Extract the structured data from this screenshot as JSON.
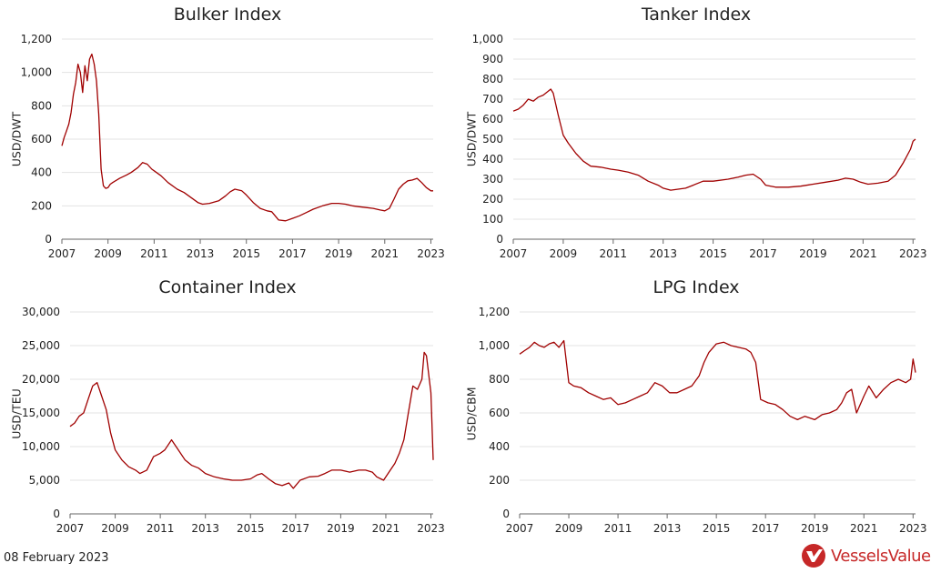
{
  "footer": {
    "date": "08 February 2023"
  },
  "brand": {
    "name": "VesselsValue",
    "color": "#c62828"
  },
  "colors": {
    "line": "#a00000",
    "grid": "#e3e3e3",
    "axis": "#666666",
    "text": "#222222"
  },
  "chart_data": [
    {
      "type": "line",
      "title": "Bulker Index",
      "ylabel": "USD/DWT",
      "xlabel": "",
      "xlim": [
        2007,
        2023.1
      ],
      "ylim": [
        0,
        1200
      ],
      "yticks": [
        0,
        200,
        400,
        600,
        800,
        1000,
        1200
      ],
      "ytick_labels": [
        "0",
        "200",
        "400",
        "600",
        "800",
        "1,000",
        "1,200"
      ],
      "xticks": [
        2007,
        2009,
        2011,
        2013,
        2015,
        2017,
        2019,
        2021,
        2023
      ],
      "xtick_labels": [
        "2007",
        "2009",
        "2011",
        "2013",
        "2015",
        "2017",
        "2019",
        "2021",
        "2023"
      ],
      "grid": true,
      "series": [
        {
          "x": [
            2007.0,
            2007.1,
            2007.2,
            2007.3,
            2007.4,
            2007.5,
            2007.6,
            2007.7,
            2007.8,
            2007.9,
            2008.0,
            2008.1,
            2008.2,
            2008.3,
            2008.4,
            2008.5,
            2008.6,
            2008.7,
            2008.8,
            2008.9,
            2009.0,
            2009.1,
            2009.2,
            2009.5,
            2009.8,
            2010.0,
            2010.3,
            2010.5,
            2010.7,
            2010.9,
            2011.0,
            2011.3,
            2011.6,
            2012.0,
            2012.3,
            2012.6,
            2012.9,
            2013.1,
            2013.4,
            2013.8,
            2014.1,
            2014.3,
            2014.5,
            2014.8,
            2015.0,
            2015.3,
            2015.6,
            2015.9,
            2016.1,
            2016.4,
            2016.7,
            2017.0,
            2017.3,
            2017.6,
            2017.9,
            2018.3,
            2018.7,
            2019.0,
            2019.3,
            2019.6,
            2019.9,
            2020.2,
            2020.5,
            2020.8,
            2021.0,
            2021.2,
            2021.4,
            2021.6,
            2021.8,
            2022.0,
            2022.2,
            2022.4,
            2022.6,
            2022.8,
            2023.0,
            2023.1
          ],
          "y": [
            560,
            610,
            650,
            690,
            760,
            870,
            940,
            1050,
            1000,
            880,
            1040,
            950,
            1080,
            1110,
            1050,
            950,
            750,
            420,
            320,
            305,
            310,
            330,
            340,
            365,
            385,
            400,
            430,
            460,
            450,
            420,
            410,
            380,
            340,
            300,
            280,
            250,
            220,
            210,
            215,
            230,
            260,
            285,
            300,
            290,
            265,
            220,
            185,
            170,
            165,
            115,
            110,
            125,
            140,
            160,
            180,
            200,
            215,
            215,
            210,
            200,
            195,
            190,
            185,
            175,
            170,
            185,
            240,
            300,
            330,
            350,
            355,
            365,
            340,
            310,
            290,
            290
          ]
        }
      ]
    },
    {
      "type": "line",
      "title": "Tanker Index",
      "ylabel": "USD/DWT",
      "xlabel": "",
      "xlim": [
        2007,
        2023.1
      ],
      "ylim": [
        0,
        1000
      ],
      "yticks": [
        0,
        100,
        200,
        300,
        400,
        500,
        600,
        700,
        800,
        900,
        1000
      ],
      "ytick_labels": [
        "0",
        "100",
        "200",
        "300",
        "400",
        "500",
        "600",
        "700",
        "800",
        "900",
        "1,000"
      ],
      "xticks": [
        2007,
        2009,
        2011,
        2013,
        2015,
        2017,
        2019,
        2021,
        2023
      ],
      "xtick_labels": [
        "2007",
        "2009",
        "2011",
        "2013",
        "2015",
        "2017",
        "2019",
        "2021",
        "2023"
      ],
      "grid": true,
      "series": [
        {
          "x": [
            2007.0,
            2007.2,
            2007.4,
            2007.6,
            2007.8,
            2008.0,
            2008.2,
            2008.4,
            2008.5,
            2008.6,
            2008.8,
            2009.0,
            2009.2,
            2009.5,
            2009.8,
            2010.1,
            2010.5,
            2010.9,
            2011.2,
            2011.6,
            2012.0,
            2012.4,
            2012.8,
            2013.0,
            2013.3,
            2013.6,
            2013.9,
            2014.2,
            2014.6,
            2015.0,
            2015.3,
            2015.6,
            2016.0,
            2016.3,
            2016.6,
            2016.9,
            2017.1,
            2017.5,
            2018.0,
            2018.5,
            2019.0,
            2019.5,
            2020.0,
            2020.3,
            2020.6,
            2020.9,
            2021.2,
            2021.6,
            2022.0,
            2022.3,
            2022.6,
            2022.9,
            2023.0,
            2023.1
          ],
          "y": [
            640,
            650,
            670,
            700,
            690,
            710,
            720,
            740,
            750,
            730,
            620,
            520,
            480,
            430,
            390,
            365,
            360,
            350,
            345,
            335,
            320,
            290,
            270,
            255,
            245,
            250,
            255,
            270,
            290,
            290,
            295,
            300,
            310,
            320,
            325,
            300,
            270,
            260,
            260,
            265,
            275,
            285,
            295,
            305,
            300,
            285,
            275,
            280,
            290,
            320,
            380,
            450,
            490,
            500
          ]
        }
      ]
    },
    {
      "type": "line",
      "title": "Container Index",
      "ylabel": "USD/TEU",
      "xlabel": "",
      "xlim": [
        2007,
        2023.1
      ],
      "ylim": [
        0,
        30000
      ],
      "yticks": [
        0,
        5000,
        10000,
        15000,
        20000,
        25000,
        30000
      ],
      "ytick_labels": [
        "0",
        "5,000",
        "10,000",
        "15,000",
        "20,000",
        "25,000",
        "30,000"
      ],
      "xticks": [
        2007,
        2009,
        2011,
        2013,
        2015,
        2017,
        2019,
        2021,
        2023
      ],
      "xtick_labels": [
        "2007",
        "2009",
        "2011",
        "2013",
        "2015",
        "2017",
        "2019",
        "2021",
        "2023"
      ],
      "grid": true,
      "series": [
        {
          "x": [
            2007.0,
            2007.2,
            2007.4,
            2007.6,
            2007.8,
            2008.0,
            2008.2,
            2008.4,
            2008.6,
            2008.8,
            2009.0,
            2009.3,
            2009.6,
            2009.9,
            2010.1,
            2010.4,
            2010.7,
            2011.0,
            2011.2,
            2011.5,
            2011.8,
            2012.1,
            2012.4,
            2012.7,
            2013.0,
            2013.4,
            2013.8,
            2014.2,
            2014.6,
            2015.0,
            2015.3,
            2015.5,
            2015.8,
            2016.1,
            2016.4,
            2016.7,
            2016.9,
            2017.2,
            2017.6,
            2018.0,
            2018.3,
            2018.6,
            2019.0,
            2019.4,
            2019.8,
            2020.1,
            2020.4,
            2020.6,
            2020.9,
            2021.2,
            2021.4,
            2021.6,
            2021.8,
            2022.0,
            2022.2,
            2022.4,
            2022.6,
            2022.7,
            2022.8,
            2023.0,
            2023.1
          ],
          "y": [
            13000,
            13500,
            14500,
            15000,
            17000,
            19000,
            19500,
            17500,
            15500,
            12000,
            9500,
            8000,
            7000,
            6500,
            6000,
            6500,
            8500,
            9000,
            9500,
            11000,
            9500,
            8000,
            7200,
            6800,
            6000,
            5500,
            5200,
            5000,
            5000,
            5200,
            5800,
            6000,
            5200,
            4500,
            4200,
            4600,
            3800,
            5000,
            5500,
            5600,
            6000,
            6500,
            6500,
            6200,
            6500,
            6500,
            6200,
            5500,
            5000,
            6500,
            7500,
            9000,
            11000,
            15000,
            19000,
            18500,
            20000,
            24000,
            23500,
            18000,
            8000
          ]
        }
      ]
    },
    {
      "type": "line",
      "title": "LPG Index",
      "ylabel": "USD/CBM",
      "xlabel": "",
      "xlim": [
        2007,
        2023.1
      ],
      "ylim": [
        0,
        1200
      ],
      "yticks": [
        0,
        200,
        400,
        600,
        800,
        1000,
        1200
      ],
      "ytick_labels": [
        "0",
        "200",
        "400",
        "600",
        "800",
        "1,000",
        "1,200"
      ],
      "xticks": [
        2007,
        2009,
        2011,
        2013,
        2015,
        2017,
        2019,
        2021,
        2023
      ],
      "xtick_labels": [
        "2007",
        "2009",
        "2011",
        "2013",
        "2015",
        "2017",
        "2019",
        "2021",
        "2023"
      ],
      "grid": true,
      "series": [
        {
          "x": [
            2007.0,
            2007.2,
            2007.4,
            2007.6,
            2007.8,
            2008.0,
            2008.2,
            2008.4,
            2008.6,
            2008.8,
            2009.0,
            2009.2,
            2009.5,
            2009.8,
            2010.1,
            2010.4,
            2010.7,
            2011.0,
            2011.3,
            2011.6,
            2011.9,
            2012.2,
            2012.5,
            2012.8,
            2013.1,
            2013.4,
            2013.7,
            2014.0,
            2014.3,
            2014.5,
            2014.7,
            2015.0,
            2015.3,
            2015.6,
            2015.9,
            2016.2,
            2016.4,
            2016.6,
            2016.8,
            2017.1,
            2017.4,
            2017.7,
            2018.0,
            2018.3,
            2018.6,
            2019.0,
            2019.3,
            2019.6,
            2019.9,
            2020.1,
            2020.3,
            2020.5,
            2020.7,
            2021.0,
            2021.2,
            2021.5,
            2021.8,
            2022.1,
            2022.4,
            2022.7,
            2022.9,
            2023.0,
            2023.1
          ],
          "y": [
            950,
            970,
            990,
            1020,
            1000,
            990,
            1010,
            1020,
            990,
            1030,
            780,
            760,
            750,
            720,
            700,
            680,
            690,
            650,
            660,
            680,
            700,
            720,
            780,
            760,
            720,
            720,
            740,
            760,
            820,
            900,
            960,
            1010,
            1020,
            1000,
            990,
            980,
            960,
            900,
            680,
            660,
            650,
            620,
            580,
            560,
            580,
            560,
            590,
            600,
            620,
            660,
            720,
            740,
            600,
            700,
            760,
            690,
            740,
            780,
            800,
            780,
            800,
            920,
            840
          ]
        }
      ]
    }
  ]
}
